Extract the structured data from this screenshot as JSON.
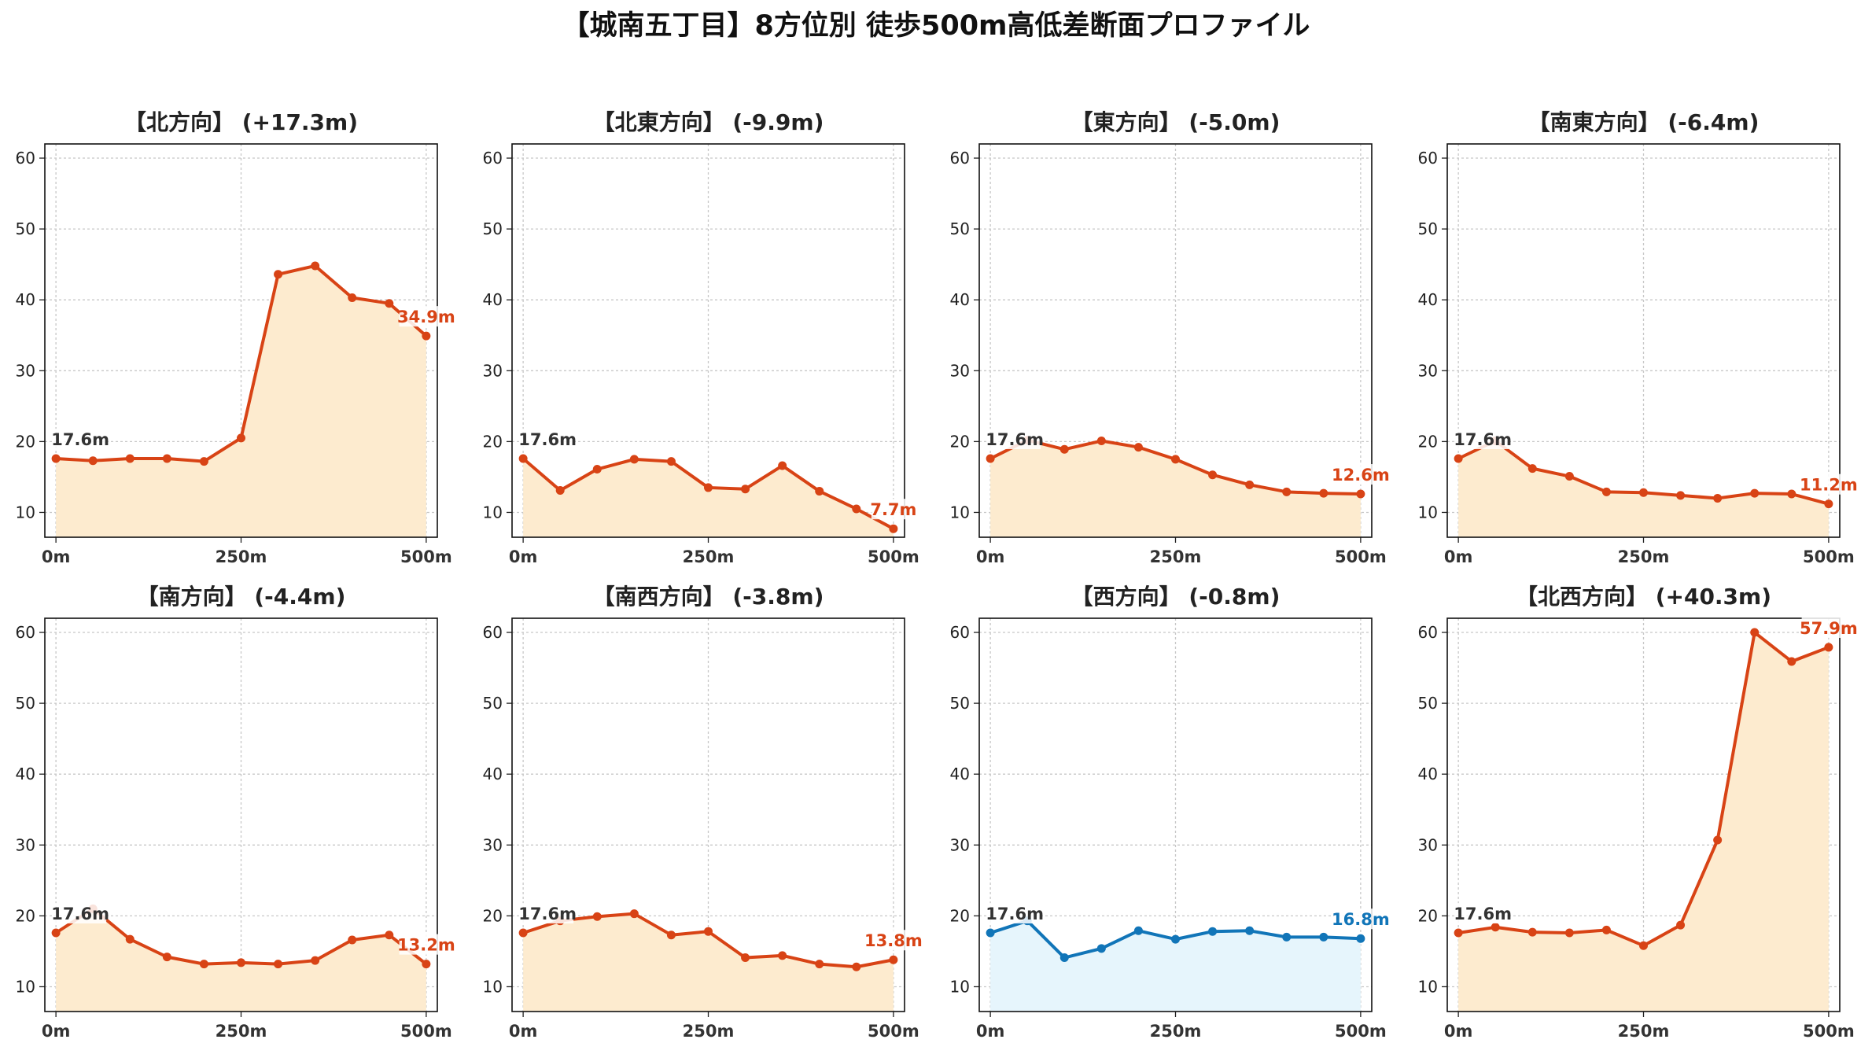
{
  "title": "【城南五丁目】8方位別 徒歩500m高低差断面プロファイル",
  "colors": {
    "down_line": "#d84315",
    "down_fill": "#fdebcf",
    "flat_line": "#1175b8",
    "flat_fill": "#e6f5fc",
    "start_label": "#333333"
  },
  "chart_data": [
    {
      "type": "area",
      "title": "【北方向】 (+17.3m)",
      "x": [
        0,
        50,
        100,
        150,
        200,
        250,
        300,
        350,
        400,
        450,
        500
      ],
      "y": [
        17.6,
        17.3,
        17.6,
        17.6,
        17.2,
        20.5,
        43.6,
        44.8,
        40.3,
        39.5,
        34.9
      ],
      "start_label": "17.6m",
      "end_label": "34.9m",
      "style": "down",
      "xticks": [
        "0m",
        "250m",
        "500m"
      ],
      "yticks": [
        "10",
        "20",
        "30",
        "40",
        "50",
        "60"
      ],
      "xlim": [
        -15,
        515
      ],
      "ylim": [
        6.5,
        62
      ],
      "grid": true
    },
    {
      "type": "area",
      "title": "【北東方向】 (-9.9m)",
      "x": [
        0,
        50,
        100,
        150,
        200,
        250,
        300,
        350,
        400,
        450,
        500
      ],
      "y": [
        17.6,
        13.1,
        16.1,
        17.5,
        17.2,
        13.5,
        13.3,
        16.6,
        13.0,
        10.5,
        7.7
      ],
      "start_label": "17.6m",
      "end_label": "7.7m",
      "style": "down",
      "xticks": [
        "0m",
        "250m",
        "500m"
      ],
      "yticks": [
        "10",
        "20",
        "30",
        "40",
        "50",
        "60"
      ],
      "xlim": [
        -15,
        515
      ],
      "ylim": [
        6.5,
        62
      ],
      "grid": true
    },
    {
      "type": "area",
      "title": "【東方向】 (-5.0m)",
      "x": [
        0,
        50,
        100,
        150,
        200,
        250,
        300,
        350,
        400,
        450,
        500
      ],
      "y": [
        17.6,
        20.2,
        18.9,
        20.1,
        19.2,
        17.5,
        15.3,
        13.9,
        12.9,
        12.7,
        12.6
      ],
      "start_label": "17.6m",
      "end_label": "12.6m",
      "style": "down",
      "xticks": [
        "0m",
        "250m",
        "500m"
      ],
      "yticks": [
        "10",
        "20",
        "30",
        "40",
        "50",
        "60"
      ],
      "xlim": [
        -15,
        515
      ],
      "ylim": [
        6.5,
        62
      ],
      "grid": true
    },
    {
      "type": "area",
      "title": "【南東方向】 (-6.4m)",
      "x": [
        0,
        50,
        100,
        150,
        200,
        250,
        300,
        350,
        400,
        450,
        500
      ],
      "y": [
        17.6,
        20.1,
        16.2,
        15.1,
        12.9,
        12.8,
        12.4,
        12.0,
        12.7,
        12.6,
        11.2
      ],
      "start_label": "17.6m",
      "end_label": "11.2m",
      "style": "down",
      "xticks": [
        "0m",
        "250m",
        "500m"
      ],
      "yticks": [
        "10",
        "20",
        "30",
        "40",
        "50",
        "60"
      ],
      "xlim": [
        -15,
        515
      ],
      "ylim": [
        6.5,
        62
      ],
      "grid": true
    },
    {
      "type": "area",
      "title": "【南方向】 (-4.4m)",
      "x": [
        0,
        50,
        100,
        150,
        200,
        250,
        300,
        350,
        400,
        450,
        500
      ],
      "y": [
        17.6,
        21.0,
        16.7,
        14.2,
        13.2,
        13.4,
        13.2,
        13.7,
        16.6,
        17.3,
        13.2
      ],
      "start_label": "17.6m",
      "end_label": "13.2m",
      "style": "down",
      "xticks": [
        "0m",
        "250m",
        "500m"
      ],
      "yticks": [
        "10",
        "20",
        "30",
        "40",
        "50",
        "60"
      ],
      "xlim": [
        -15,
        515
      ],
      "ylim": [
        6.5,
        62
      ],
      "grid": true
    },
    {
      "type": "area",
      "title": "【南西方向】 (-3.8m)",
      "x": [
        0,
        50,
        100,
        150,
        200,
        250,
        300,
        350,
        400,
        450,
        500
      ],
      "y": [
        17.6,
        19.3,
        19.9,
        20.3,
        17.3,
        17.8,
        14.1,
        14.4,
        13.2,
        12.8,
        13.8
      ],
      "start_label": "17.6m",
      "end_label": "13.8m",
      "style": "down",
      "xticks": [
        "0m",
        "250m",
        "500m"
      ],
      "yticks": [
        "10",
        "20",
        "30",
        "40",
        "50",
        "60"
      ],
      "xlim": [
        -15,
        515
      ],
      "ylim": [
        6.5,
        62
      ],
      "grid": true
    },
    {
      "type": "area",
      "title": "【西方向】 (-0.8m)",
      "x": [
        0,
        50,
        100,
        150,
        200,
        250,
        300,
        350,
        400,
        450,
        500
      ],
      "y": [
        17.6,
        19.3,
        14.1,
        15.4,
        17.9,
        16.7,
        17.8,
        17.9,
        17.0,
        17.0,
        16.8
      ],
      "start_label": "17.6m",
      "end_label": "16.8m",
      "style": "flat",
      "xticks": [
        "0m",
        "250m",
        "500m"
      ],
      "yticks": [
        "10",
        "20",
        "30",
        "40",
        "50",
        "60"
      ],
      "xlim": [
        -15,
        515
      ],
      "ylim": [
        6.5,
        62
      ],
      "grid": true
    },
    {
      "type": "area",
      "title": "【北西方向】 (+40.3m)",
      "x": [
        0,
        50,
        100,
        150,
        200,
        250,
        300,
        350,
        400,
        450,
        500
      ],
      "y": [
        17.6,
        18.4,
        17.7,
        17.6,
        18.0,
        15.8,
        18.7,
        30.7,
        60.0,
        55.9,
        57.9
      ],
      "start_label": "17.6m",
      "end_label": "57.9m",
      "style": "down",
      "xticks": [
        "0m",
        "250m",
        "500m"
      ],
      "yticks": [
        "10",
        "20",
        "30",
        "40",
        "50",
        "60"
      ],
      "xlim": [
        -15,
        515
      ],
      "ylim": [
        6.5,
        62
      ],
      "grid": true
    }
  ]
}
